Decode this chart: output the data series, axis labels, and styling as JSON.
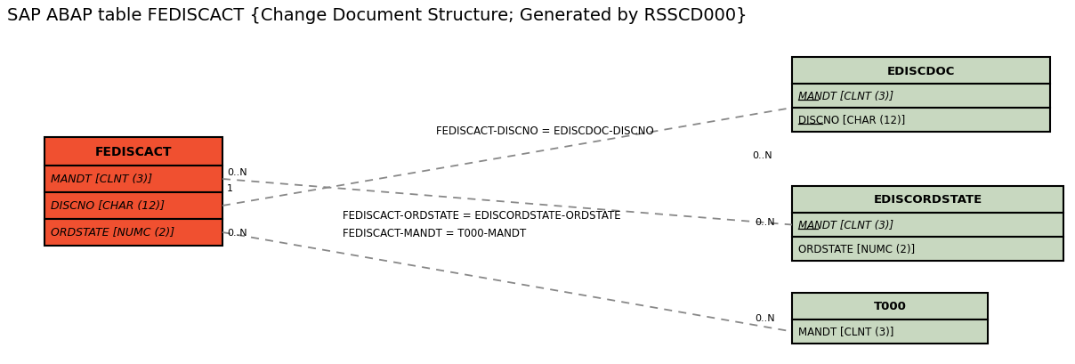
{
  "title": "SAP ABAP table FEDISCACT {Change Document Structure; Generated by RSSCD000}",
  "title_fontsize": 14,
  "background_color": "#ffffff",
  "fediscact": {
    "name": "FEDISCACT",
    "header_color": "#f05030",
    "field_color": "#f05030",
    "border_color": "#000000",
    "fields": [
      "MANDT [CLNT (3)]",
      "DISCNO [CHAR (12)]",
      "ORDSTATE [NUMC (2)]"
    ],
    "italic_fields": [
      true,
      true,
      true
    ],
    "underline_fields": [
      false,
      false,
      false
    ]
  },
  "ediscdoc": {
    "name": "EDISCDOC",
    "header_color": "#c8d8c0",
    "field_color": "#c8d8c0",
    "border_color": "#000000",
    "fields": [
      "MANDT [CLNT (3)]",
      "DISCNO [CHAR (12)]"
    ],
    "italic_fields": [
      true,
      false
    ],
    "underline_fields": [
      true,
      true
    ],
    "underline_words": [
      "MANDT",
      "DISCNO"
    ]
  },
  "ediscordstate": {
    "name": "EDISCORDSTATE",
    "header_color": "#c8d8c0",
    "field_color": "#c8d8c0",
    "border_color": "#000000",
    "fields": [
      "MANDT [CLNT (3)]",
      "ORDSTATE [NUMC (2)]"
    ],
    "italic_fields": [
      true,
      false
    ],
    "underline_fields": [
      true,
      false
    ],
    "underline_words": [
      "MANDT",
      ""
    ]
  },
  "t000": {
    "name": "T000",
    "header_color": "#c8d8c0",
    "field_color": "#c8d8c0",
    "border_color": "#000000",
    "fields": [
      "MANDT [CLNT (3)]"
    ],
    "italic_fields": [
      false
    ],
    "underline_fields": [
      false
    ],
    "underline_words": [
      ""
    ]
  },
  "line_color": "#888888",
  "line_style": "--",
  "label_fontsize": 8.5,
  "cardinality_fontsize": 8,
  "relation1_label": "FEDISCACT-DISCNO = EDISCDOC-DISCNO",
  "relation2_label": "FEDISCACT-ORDSTATE = EDISCORDSTATE-ORDSTATE",
  "relation3_label": "FEDISCACT-MANDT = T000-MANDT",
  "from_card1": "0..N",
  "from_card2": "1",
  "from_card3": "0..N",
  "to_card1": "0..N",
  "to_card2": "0..N",
  "to_card3": "0..N"
}
